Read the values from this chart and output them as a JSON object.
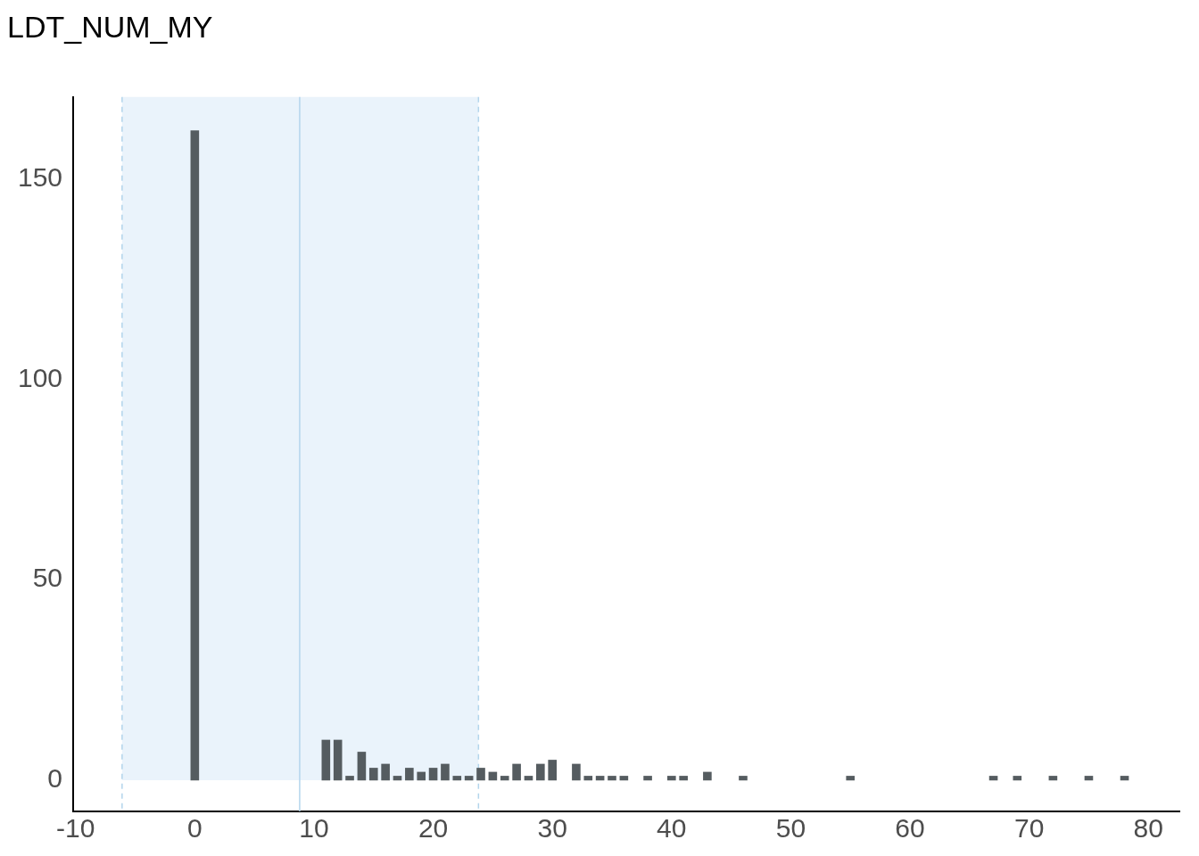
{
  "chart_data": {
    "type": "histogram",
    "title": "LDT_NUM_MY",
    "bins": [
      -0.5,
      0.5,
      1.5,
      2.5,
      3.5,
      4.5,
      5.5,
      6.5,
      7.5,
      8.5,
      9.5,
      10.5,
      11.5,
      12.5,
      13.5,
      14.5,
      15.5,
      16.5,
      17.5,
      18.5,
      19.5,
      20.5,
      21.5,
      22.5,
      23.5,
      24.5,
      25.5,
      26.5,
      27.5,
      28.5,
      29.5,
      30.5,
      31.5,
      32.5,
      33.5,
      34.5,
      35.5,
      36.5,
      37.5,
      38.5,
      39.5,
      40.5,
      41.5,
      42.5,
      43.5,
      44.5,
      45.5,
      46.5,
      47.5,
      48.5,
      49.5,
      50.5,
      51.5,
      52.5,
      53.5,
      54.5,
      55.5,
      56.5,
      57.5,
      58.5,
      59.5,
      60.5,
      61.5,
      62.5,
      63.5,
      64.5,
      65.5,
      66.5,
      67.5,
      68.5,
      69.5,
      70.5,
      71.5,
      72.5,
      73.5,
      74.5,
      75.5,
      76.5,
      77.5,
      78.5
    ],
    "values": [
      162,
      0,
      0,
      0,
      0,
      0,
      0,
      0,
      0,
      0,
      0,
      10,
      10,
      1,
      7,
      3,
      4,
      1,
      3,
      2,
      3,
      4,
      1,
      1,
      3,
      2,
      1,
      4,
      1,
      4,
      5,
      0,
      4,
      1,
      1,
      1,
      1,
      0,
      1,
      0,
      1,
      1,
      0,
      2,
      0,
      0,
      1,
      0,
      0,
      0,
      0,
      0,
      0,
      0,
      0,
      1,
      0,
      0,
      0,
      0,
      0,
      0,
      0,
      0,
      0,
      0,
      0,
      1,
      0,
      1,
      0,
      0,
      1,
      0,
      0,
      1,
      0,
      0,
      1
    ],
    "color": "#555c60",
    "xlim": [
      -10.2,
      82.6
    ],
    "xticks": [
      -10,
      0,
      10,
      20,
      30,
      40,
      50,
      60,
      70,
      80
    ],
    "ylim": [
      -7.8,
      170.4
    ],
    "yticks": [
      0,
      50,
      100,
      150
    ],
    "grid": false,
    "legend": false,
    "bands": [
      {
        "axis": "x",
        "from": -6.1,
        "to": 23.8,
        "color": "#eaf3fb"
      }
    ],
    "ref_lines": [
      {
        "axis": "x",
        "value": 8.8,
        "color": "#b3d5ec",
        "line_style": "solid"
      },
      {
        "axis": "x",
        "value": -6.1,
        "color": "#b3d5ec",
        "line_style": "dashed"
      },
      {
        "axis": "x",
        "value": 23.8,
        "color": "#b3d5ec",
        "line_style": "dashed"
      }
    ]
  }
}
